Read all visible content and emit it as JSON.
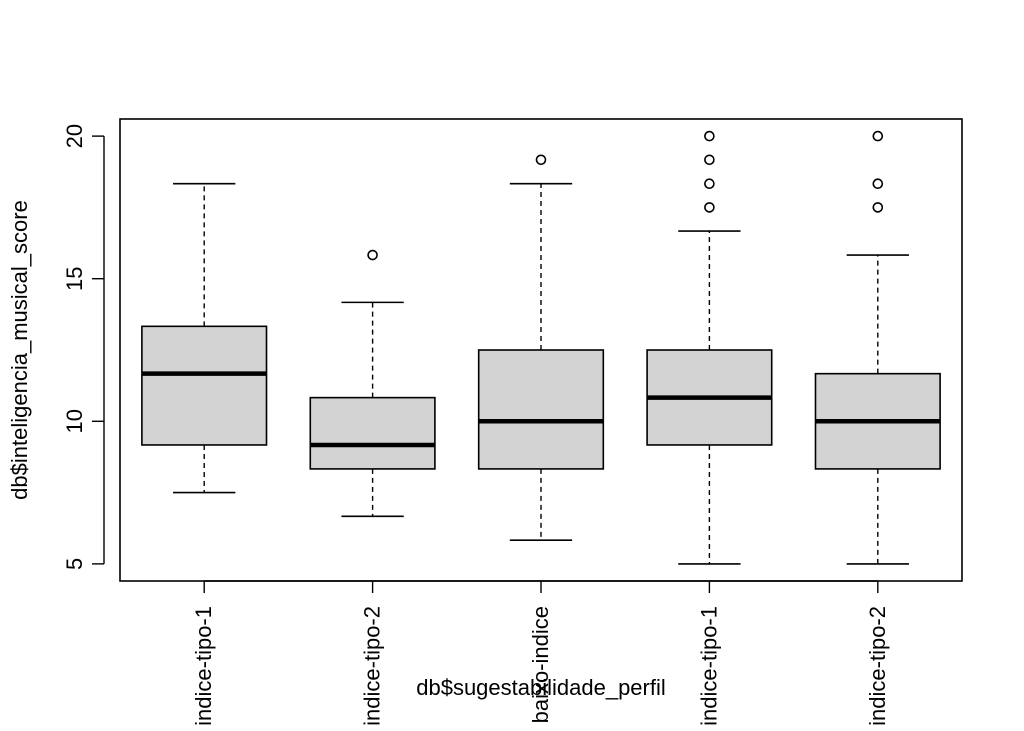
{
  "chart_data": {
    "type": "boxplot",
    "title": "",
    "xlabel": "db$sugestabilidade_perfil",
    "ylabel": "db$inteligencia_musical_score",
    "ylim": [
      4.4,
      20.6
    ],
    "yticks": [
      5,
      10,
      15,
      20
    ],
    "grid": false,
    "box_color": "#d3d3d3",
    "categories": [
      "indice-tipo-1",
      "indice-tipo-2",
      "baixo-indice",
      "indice-tipo-1",
      "indice-tipo-2"
    ],
    "boxes": [
      {
        "whisker_low": 7.5,
        "q1": 9.17,
        "median": 11.67,
        "q3": 13.33,
        "whisker_high": 18.33,
        "outliers": []
      },
      {
        "whisker_low": 6.67,
        "q1": 8.33,
        "median": 9.17,
        "q3": 10.83,
        "whisker_high": 14.17,
        "outliers": [
          15.83
        ]
      },
      {
        "whisker_low": 5.83,
        "q1": 8.33,
        "median": 10.0,
        "q3": 12.5,
        "whisker_high": 18.33,
        "outliers": [
          19.17
        ]
      },
      {
        "whisker_low": 5.0,
        "q1": 9.17,
        "median": 10.83,
        "q3": 12.5,
        "whisker_high": 16.67,
        "outliers": [
          17.5,
          18.33,
          19.17,
          20.0
        ]
      },
      {
        "whisker_low": 5.0,
        "q1": 8.33,
        "median": 10.0,
        "q3": 11.67,
        "whisker_high": 15.83,
        "outliers": [
          17.5,
          18.33,
          20.0
        ]
      }
    ]
  }
}
